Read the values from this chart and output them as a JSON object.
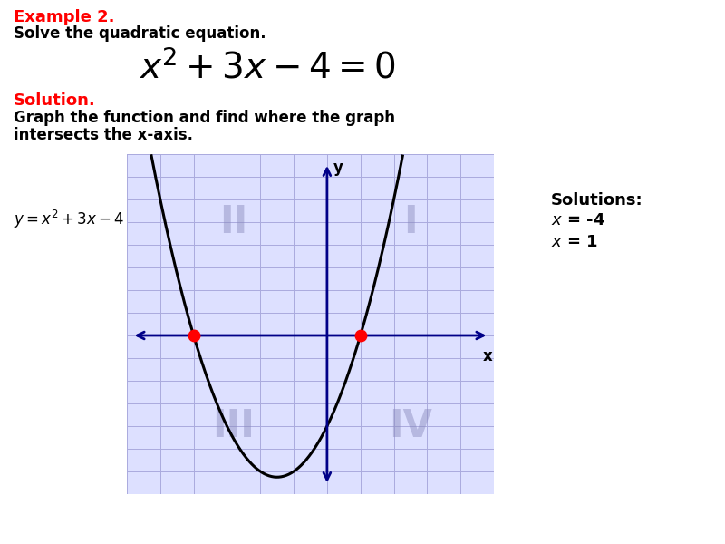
{
  "title_example": "Example 2.",
  "title_solve": "Solve the quadratic equation.",
  "solution_label": "Solution.",
  "solution_desc1": "Graph the function and find where the graph",
  "solution_desc2": "intersects the x-axis.",
  "solutions_title": "Solutions:",
  "solution_x1": "x = -4",
  "solution_x2": "x = 1",
  "roots": [
    -4,
    1
  ],
  "x_range": [
    -6,
    5
  ],
  "y_range": [
    -7,
    8
  ],
  "grid_color": "#aaaadd",
  "bg_color": "#dde0ff",
  "axis_color": "#000088",
  "parabola_color": "#000000",
  "dot_color": "#ff0000",
  "quadrant_color": "#8888bb",
  "quadrant_alpha": 0.45,
  "quadrant_fontsize": 30
}
